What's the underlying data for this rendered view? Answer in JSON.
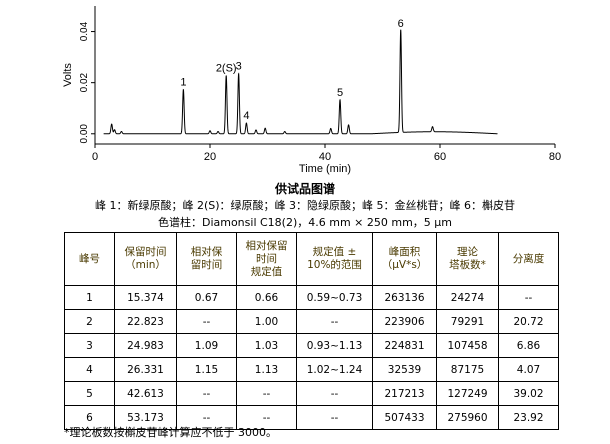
{
  "chart_data": {
    "type": "line",
    "xlabel": "Time (min)",
    "ylabel": "Volts",
    "xlim": [
      0,
      80
    ],
    "ylim": [
      -0.004,
      0.05
    ],
    "x_ticks": [
      "0",
      "20",
      "40",
      "60",
      "80"
    ],
    "y_ticks": [
      "0.00",
      "0.02",
      "0.04"
    ],
    "grid": false,
    "baseline": 0.0,
    "peaks": [
      {
        "label": "1",
        "x": 15.37,
        "y": 0.0173
      },
      {
        "label": "2(S)",
        "x": 22.82,
        "y": 0.0228
      },
      {
        "label": "3",
        "x": 24.98,
        "y": 0.0235
      },
      {
        "label": "4",
        "x": 26.33,
        "y": 0.0042
      },
      {
        "label": "5",
        "x": 42.61,
        "y": 0.0133
      },
      {
        "label": "6",
        "x": 53.17,
        "y": 0.0402
      }
    ],
    "minor_peaks": [
      {
        "x": 2.9,
        "y": 0.0038
      },
      {
        "x": 3.4,
        "y": 0.0016
      },
      {
        "x": 4.6,
        "y": 0.0009
      },
      {
        "x": 20.0,
        "y": 0.0012
      },
      {
        "x": 21.4,
        "y": 0.0009
      },
      {
        "x": 28.0,
        "y": 0.0015
      },
      {
        "x": 29.6,
        "y": 0.0022
      },
      {
        "x": 33.0,
        "y": 0.0009
      },
      {
        "x": 41.0,
        "y": 0.0021
      },
      {
        "x": 44.1,
        "y": 0.0035
      },
      {
        "x": 58.7,
        "y": 0.002
      }
    ],
    "baseline_rise": {
      "from": 48,
      "to": 70,
      "level": 0.0008
    }
  },
  "caption": {
    "title": "供试品图谱",
    "peaks_line": "峰 1：新绿原酸；峰 2(S)：绿原酸；峰 3：隐绿原酸；峰 5：金丝桃苷；峰 6：槲皮苷",
    "column_line": "色谱柱：Diamonsil C18(2)，4.6 mm × 250 mm，5 μm"
  },
  "table": {
    "headers": [
      "峰号",
      "保留时间\n（min）",
      "相对保\n留时间",
      "相对保留\n时间\n规定值",
      "规定值 ±\n10%的范围",
      "峰面积\n（μV*s）",
      "理论\n塔板数*",
      "分离度"
    ],
    "rows": [
      [
        "1",
        "15.374",
        "0.67",
        "0.66",
        "0.59~0.73",
        "263136",
        "24274",
        "--"
      ],
      [
        "2",
        "22.823",
        "--",
        "1.00",
        "--",
        "223906",
        "79291",
        "20.72"
      ],
      [
        "3",
        "24.983",
        "1.09",
        "1.03",
        "0.93~1.13",
        "224831",
        "107458",
        "6.86"
      ],
      [
        "4",
        "26.331",
        "1.15",
        "1.13",
        "1.02~1.24",
        "32539",
        "87175",
        "4.07"
      ],
      [
        "5",
        "42.613",
        "--",
        "--",
        "--",
        "217213",
        "127249",
        "39.02"
      ],
      [
        "6",
        "53.173",
        "--",
        "--",
        "--",
        "507433",
        "275960",
        "23.92"
      ]
    ]
  },
  "footnote": "*理论板数按槲皮苷峰计算应不低于 3000。"
}
